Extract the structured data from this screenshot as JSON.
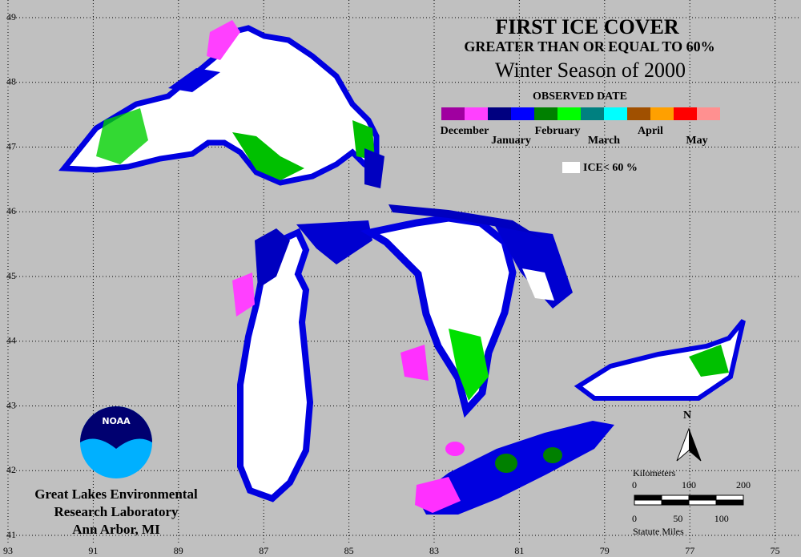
{
  "title": "FIRST ICE COVER",
  "subtitle": "GREATER THAN OR EQUAL TO 60%",
  "season": "Winter Season of 2000",
  "legend": {
    "title": "OBSERVED DATE",
    "months": [
      {
        "name": "December",
        "colors": [
          "#a000a0",
          "#ff40ff"
        ]
      },
      {
        "name": "January",
        "colors": [
          "#000080",
          "#0000ff"
        ]
      },
      {
        "name": "February",
        "colors": [
          "#008000",
          "#00ff00"
        ]
      },
      {
        "name": "March",
        "colors": [
          "#008080",
          "#00ffff"
        ]
      },
      {
        "name": "April",
        "colors": [
          "#a05000",
          "#ffa000"
        ]
      },
      {
        "name": "May",
        "colors": [
          "#ff0000",
          "#ff9090"
        ]
      }
    ],
    "ice_label": "ICE< 60 %"
  },
  "grid": {
    "lon": [
      93,
      91,
      89,
      87,
      85,
      83,
      81,
      79,
      77,
      75
    ],
    "lat": [
      49,
      48,
      47,
      46,
      45,
      44,
      43,
      42,
      41
    ]
  },
  "logo_text": "NOAA",
  "org": [
    "Great Lakes Environmental",
    "Research Laboratory",
    "Ann Arbor, MI"
  ],
  "north": "N",
  "scale": {
    "km_label": "Kilometers",
    "km_ticks": [
      0,
      100,
      200
    ],
    "mi_ticks": [
      0,
      50,
      100
    ],
    "mi_label": "Statute Miles"
  }
}
